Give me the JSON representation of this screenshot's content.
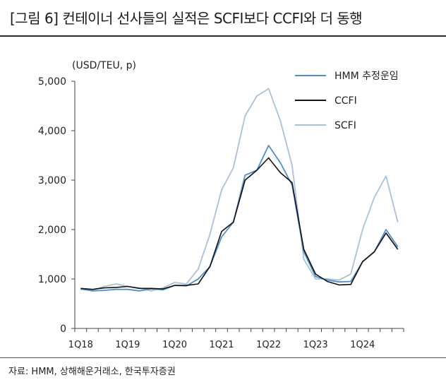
{
  "header": {
    "title": "[그림 6] 컨테이너 선사들의 실적은 SCFI보다 CCFI와 더 동행"
  },
  "footer": {
    "source": "자료: HMM, 상해해운거래소, 한국투자증권"
  },
  "chart_data": {
    "type": "line",
    "unit_label": "(USD/TEU, p)",
    "ylim": [
      0,
      5000
    ],
    "y_ticks": [
      "0",
      "1,000",
      "2,000",
      "3,000",
      "4,000",
      "5,000"
    ],
    "y_tick_values": [
      0,
      1000,
      2000,
      3000,
      4000,
      5000
    ],
    "x": [
      "1Q18",
      "2Q18",
      "3Q18",
      "4Q18",
      "1Q19",
      "2Q19",
      "3Q19",
      "4Q19",
      "1Q20",
      "2Q20",
      "3Q20",
      "4Q20",
      "1Q21",
      "2Q21",
      "3Q21",
      "4Q21",
      "1Q22",
      "2Q22",
      "3Q22",
      "4Q22",
      "1Q23",
      "2Q23",
      "3Q23",
      "4Q23",
      "1Q24",
      "2Q24",
      "3Q24",
      "4Q24"
    ],
    "x_tick_labels": [
      "1Q18",
      "1Q19",
      "1Q20",
      "1Q21",
      "1Q22",
      "1Q23",
      "1Q24"
    ],
    "x_tick_indices": [
      0,
      4,
      8,
      12,
      16,
      20,
      24
    ],
    "legend_position": "top-right",
    "series": [
      {
        "name": "HMM 추정운임",
        "color": "#4f8fc9",
        "values": [
          800,
          760,
          770,
          790,
          790,
          760,
          800,
          780,
          870,
          860,
          1000,
          1250,
          1850,
          2150,
          3100,
          3200,
          3700,
          3350,
          2900,
          1550,
          1050,
          980,
          940,
          950,
          1350,
          1550,
          2000,
          1650
        ]
      },
      {
        "name": "CCFI",
        "color": "#111111",
        "values": [
          810,
          790,
          820,
          830,
          850,
          810,
          810,
          800,
          870,
          870,
          900,
          1250,
          1960,
          2150,
          3000,
          3200,
          3450,
          3150,
          2950,
          1600,
          1100,
          950,
          880,
          890,
          1350,
          1550,
          1930,
          1600
        ]
      },
      {
        "name": "SCFI",
        "color": "#a9bfdc",
        "values": [
          790,
          770,
          850,
          900,
          850,
          820,
          760,
          820,
          930,
          900,
          1200,
          1900,
          2800,
          3250,
          4300,
          4700,
          4850,
          4200,
          3300,
          1400,
          1000,
          1000,
          980,
          1100,
          2000,
          2650,
          3080,
          2150
        ]
      }
    ]
  }
}
